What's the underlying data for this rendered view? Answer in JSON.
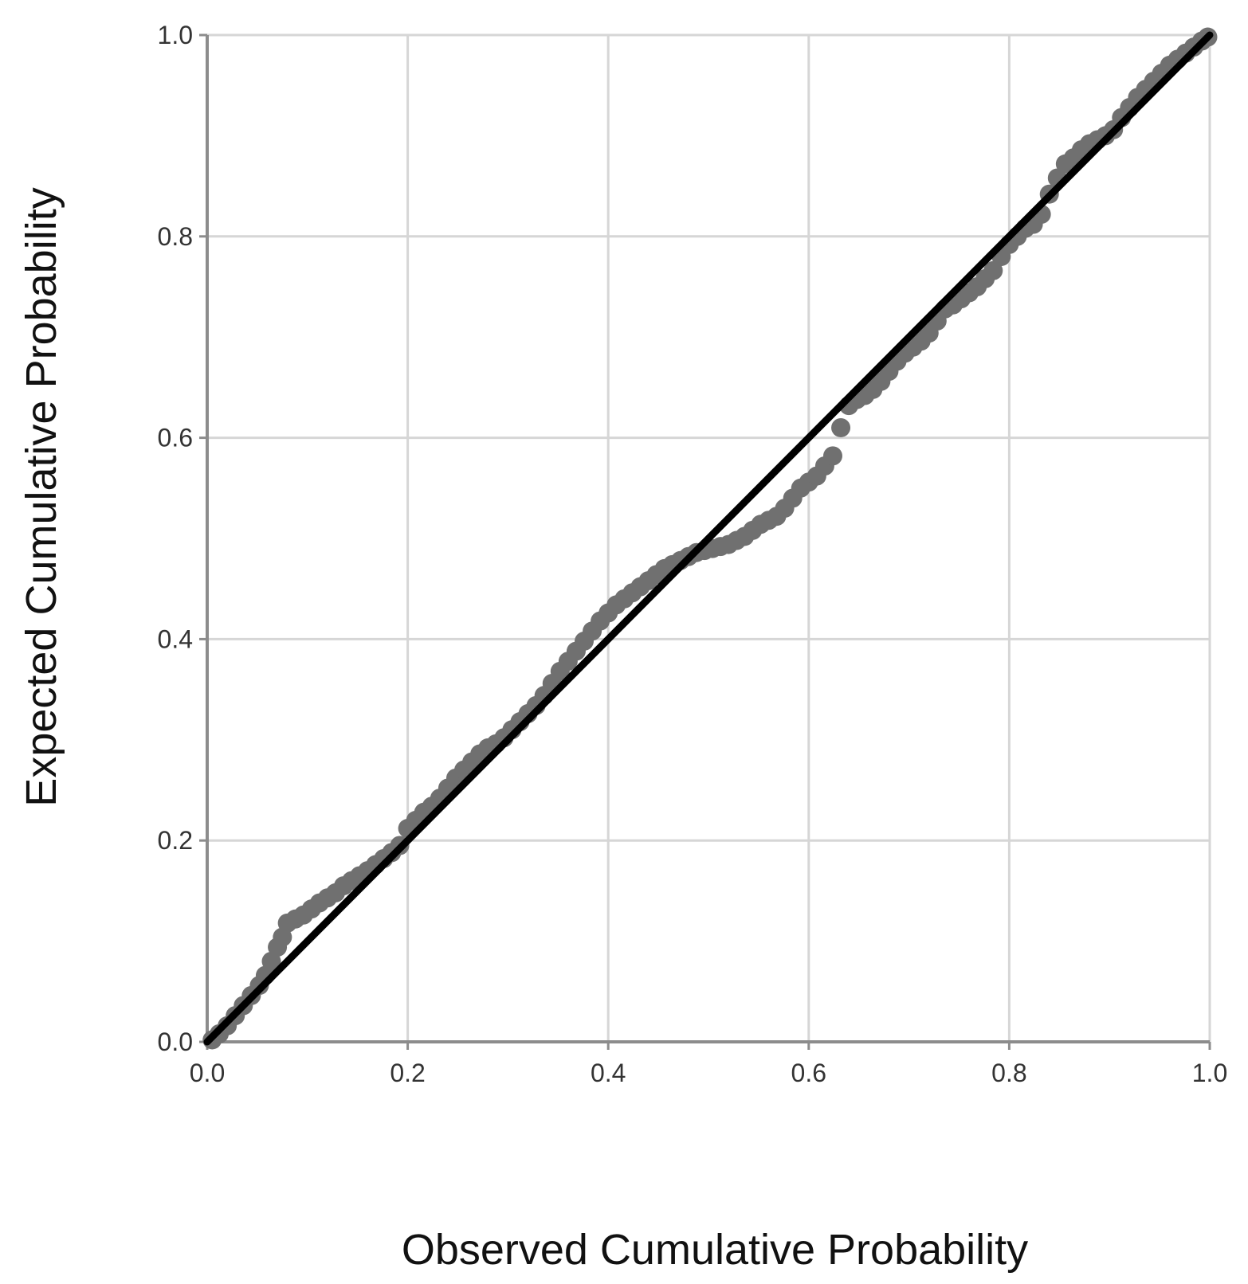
{
  "chart_data": {
    "type": "scatter",
    "title": "",
    "xlabel": "Observed Cumulative Probability",
    "ylabel": "Expected Cumulative Probability",
    "xlim": [
      0.0,
      1.0
    ],
    "ylim": [
      0.0,
      1.0
    ],
    "x_ticks": [
      "0.0",
      "0.2",
      "0.4",
      "0.6",
      "0.8",
      "1.0"
    ],
    "y_ticks": [
      "0.0",
      "0.2",
      "0.4",
      "0.6",
      "0.8",
      "1.0"
    ],
    "grid": true,
    "legend": "none",
    "reference_line": {
      "x": [
        0.0,
        1.0
      ],
      "y": [
        0.0,
        1.0
      ]
    },
    "series": [
      {
        "points": [
          [
            0.005,
            0.002
          ],
          [
            0.012,
            0.008
          ],
          [
            0.02,
            0.016
          ],
          [
            0.028,
            0.026
          ],
          [
            0.036,
            0.036
          ],
          [
            0.044,
            0.046
          ],
          [
            0.052,
            0.056
          ],
          [
            0.058,
            0.066
          ],
          [
            0.064,
            0.08
          ],
          [
            0.07,
            0.094
          ],
          [
            0.075,
            0.104
          ],
          [
            0.08,
            0.118
          ],
          [
            0.088,
            0.122
          ],
          [
            0.096,
            0.126
          ],
          [
            0.104,
            0.132
          ],
          [
            0.112,
            0.138
          ],
          [
            0.12,
            0.143
          ],
          [
            0.128,
            0.148
          ],
          [
            0.136,
            0.155
          ],
          [
            0.144,
            0.16
          ],
          [
            0.152,
            0.165
          ],
          [
            0.16,
            0.17
          ],
          [
            0.168,
            0.176
          ],
          [
            0.176,
            0.182
          ],
          [
            0.184,
            0.188
          ],
          [
            0.192,
            0.195
          ],
          [
            0.2,
            0.212
          ],
          [
            0.208,
            0.22
          ],
          [
            0.216,
            0.228
          ],
          [
            0.224,
            0.234
          ],
          [
            0.232,
            0.242
          ],
          [
            0.24,
            0.252
          ],
          [
            0.248,
            0.262
          ],
          [
            0.256,
            0.27
          ],
          [
            0.264,
            0.278
          ],
          [
            0.272,
            0.286
          ],
          [
            0.28,
            0.292
          ],
          [
            0.288,
            0.296
          ],
          [
            0.296,
            0.302
          ],
          [
            0.304,
            0.31
          ],
          [
            0.312,
            0.318
          ],
          [
            0.32,
            0.326
          ],
          [
            0.328,
            0.334
          ],
          [
            0.336,
            0.344
          ],
          [
            0.344,
            0.356
          ],
          [
            0.352,
            0.368
          ],
          [
            0.36,
            0.378
          ],
          [
            0.368,
            0.388
          ],
          [
            0.376,
            0.398
          ],
          [
            0.384,
            0.408
          ],
          [
            0.392,
            0.418
          ],
          [
            0.4,
            0.426
          ],
          [
            0.408,
            0.434
          ],
          [
            0.416,
            0.44
          ],
          [
            0.424,
            0.446
          ],
          [
            0.432,
            0.452
          ],
          [
            0.44,
            0.458
          ],
          [
            0.448,
            0.464
          ],
          [
            0.456,
            0.47
          ],
          [
            0.464,
            0.474
          ],
          [
            0.472,
            0.478
          ],
          [
            0.48,
            0.482
          ],
          [
            0.488,
            0.486
          ],
          [
            0.496,
            0.488
          ],
          [
            0.504,
            0.49
          ],
          [
            0.512,
            0.492
          ],
          [
            0.52,
            0.494
          ],
          [
            0.528,
            0.498
          ],
          [
            0.536,
            0.502
          ],
          [
            0.544,
            0.508
          ],
          [
            0.552,
            0.514
          ],
          [
            0.56,
            0.518
          ],
          [
            0.568,
            0.522
          ],
          [
            0.576,
            0.53
          ],
          [
            0.584,
            0.54
          ],
          [
            0.592,
            0.55
          ],
          [
            0.6,
            0.556
          ],
          [
            0.608,
            0.562
          ],
          [
            0.616,
            0.572
          ],
          [
            0.624,
            0.582
          ],
          [
            0.632,
            0.61
          ],
          [
            0.64,
            0.632
          ],
          [
            0.648,
            0.638
          ],
          [
            0.656,
            0.642
          ],
          [
            0.664,
            0.648
          ],
          [
            0.672,
            0.656
          ],
          [
            0.68,
            0.666
          ],
          [
            0.688,
            0.676
          ],
          [
            0.696,
            0.684
          ],
          [
            0.704,
            0.69
          ],
          [
            0.712,
            0.696
          ],
          [
            0.72,
            0.704
          ],
          [
            0.728,
            0.716
          ],
          [
            0.736,
            0.728
          ],
          [
            0.744,
            0.732
          ],
          [
            0.752,
            0.738
          ],
          [
            0.76,
            0.744
          ],
          [
            0.768,
            0.75
          ],
          [
            0.776,
            0.758
          ],
          [
            0.784,
            0.766
          ],
          [
            0.792,
            0.78
          ],
          [
            0.8,
            0.792
          ],
          [
            0.808,
            0.8
          ],
          [
            0.816,
            0.808
          ],
          [
            0.824,
            0.812
          ],
          [
            0.832,
            0.822
          ],
          [
            0.84,
            0.842
          ],
          [
            0.848,
            0.858
          ],
          [
            0.856,
            0.872
          ],
          [
            0.864,
            0.878
          ],
          [
            0.872,
            0.886
          ],
          [
            0.88,
            0.892
          ],
          [
            0.888,
            0.896
          ],
          [
            0.896,
            0.9
          ],
          [
            0.904,
            0.906
          ],
          [
            0.912,
            0.918
          ],
          [
            0.92,
            0.928
          ],
          [
            0.928,
            0.938
          ],
          [
            0.936,
            0.946
          ],
          [
            0.944,
            0.954
          ],
          [
            0.952,
            0.962
          ],
          [
            0.96,
            0.97
          ],
          [
            0.968,
            0.976
          ],
          [
            0.976,
            0.982
          ],
          [
            0.984,
            0.988
          ],
          [
            0.992,
            0.994
          ],
          [
            0.998,
            0.998
          ]
        ]
      }
    ]
  },
  "colors": {
    "background": "#ffffff",
    "grid": "#d6d6d6",
    "axis": "#8c8c8c",
    "points": "#707070",
    "reference_line": "#000000"
  }
}
